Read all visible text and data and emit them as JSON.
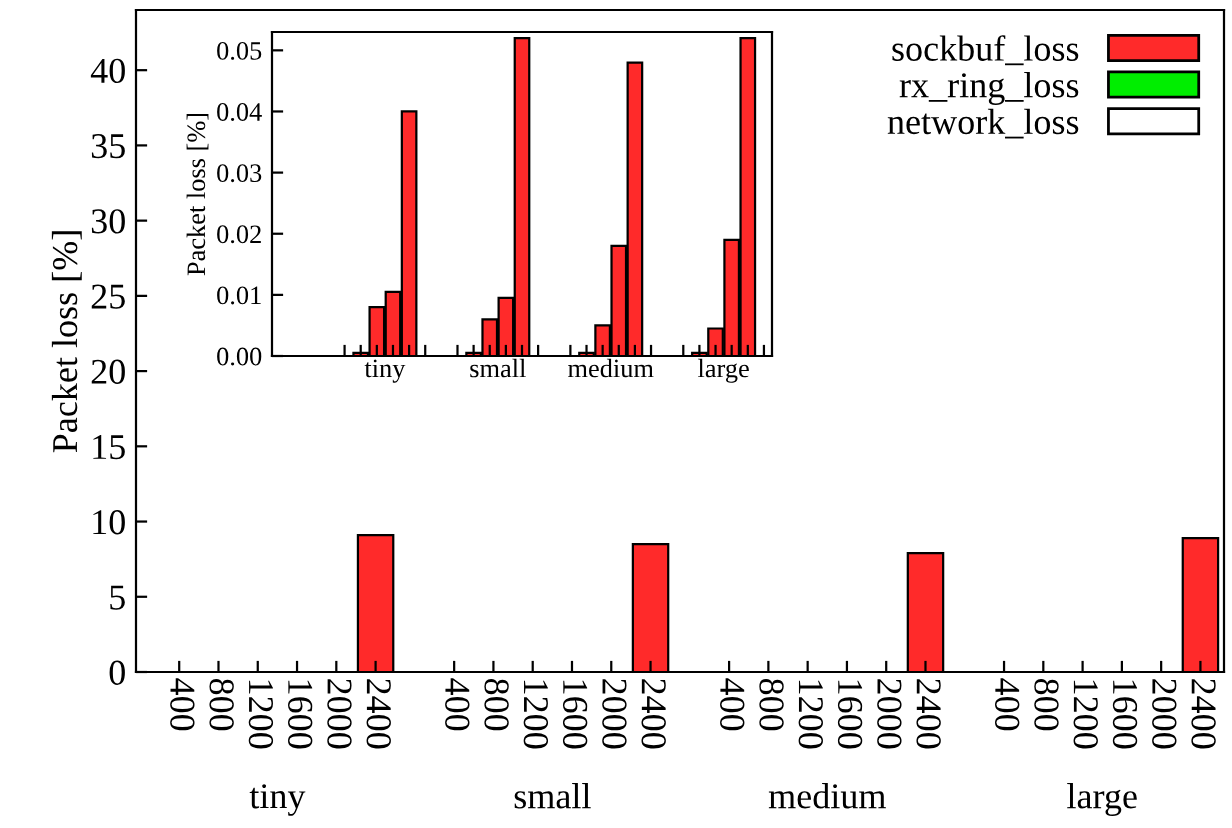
{
  "chart_data": [
    {
      "type": "bar",
      "ylabel": "Packet loss [%]",
      "categories": [
        "400",
        "800",
        "1200",
        "1600",
        "2000",
        "2400",
        null,
        "400",
        "800",
        "1200",
        "1600",
        "2000",
        "2400",
        null,
        "400",
        "800",
        "1200",
        "1600",
        "2000",
        "2400",
        null,
        "400",
        "800",
        "1200",
        "1600",
        "2000",
        "2400"
      ],
      "series": [
        {
          "name": "sockbuf_loss",
          "color": "#ff2a2a",
          "values": [
            0,
            0,
            0,
            0,
            0,
            9.1,
            null,
            0,
            0,
            0,
            0,
            0,
            8.5,
            null,
            0,
            0,
            0,
            0,
            0,
            7.9,
            null,
            0,
            0,
            0,
            0,
            0,
            8.9
          ]
        },
        {
          "name": "rx_ring_loss",
          "color": "#00ee00",
          "values": [
            0,
            0,
            0,
            0,
            0,
            0,
            null,
            0,
            0,
            0,
            0,
            0,
            0,
            null,
            0,
            0,
            0,
            0,
            0,
            0,
            null,
            0,
            0,
            0,
            0,
            0,
            0
          ]
        },
        {
          "name": "network_loss",
          "color": "#ffffff",
          "values": [
            0,
            0,
            0,
            0,
            0,
            0,
            null,
            0,
            0,
            0,
            0,
            0,
            0,
            null,
            0,
            0,
            0,
            0,
            0,
            0,
            null,
            0,
            0,
            0,
            0,
            0,
            0
          ]
        }
      ],
      "ylim": [
        0,
        44
      ],
      "yticks": [
        0,
        5,
        10,
        15,
        20,
        25,
        30,
        35,
        40
      ],
      "legend": "top right",
      "grid": false,
      "annotations": [
        "tiny",
        "small",
        "medium",
        "large"
      ]
    },
    {
      "type": "bar",
      "ylabel": "Packet loss [%]",
      "categories": [
        null,
        null,
        null,
        null,
        null,
        null,
        null,
        null,
        null,
        null,
        null,
        null,
        null,
        null,
        null,
        null,
        null,
        null,
        null,
        null,
        null,
        null,
        null,
        null,
        null,
        null,
        null,
        null,
        null,
        null,
        null
      ],
      "series": [
        {
          "color": "#ff2a2a",
          "values": [
            null,
            null,
            null,
            null,
            0,
            0.0005,
            0.008,
            0.0105,
            0.04,
            null,
            null,
            0,
            0.0005,
            0.006,
            0.0095,
            0.052,
            null,
            null,
            0,
            0.0005,
            0.005,
            0.018,
            0.048,
            null,
            null,
            0,
            0.0005,
            0.0045,
            0.019,
            0.052,
            null
          ]
        },
        {
          "color": "#00ee00",
          "values": [
            null,
            null,
            null,
            null,
            0,
            0,
            0,
            0,
            0,
            0,
            null,
            0,
            0,
            0,
            0,
            0,
            0,
            null,
            0,
            0,
            0,
            0,
            0,
            0,
            null,
            0,
            0,
            0,
            0,
            0,
            0
          ]
        },
        {
          "color": "#ffffff",
          "values": [
            null,
            null,
            null,
            null,
            0,
            0,
            0,
            0,
            0,
            0,
            null,
            0,
            0,
            0,
            0,
            0,
            0,
            null,
            0,
            0,
            0,
            0,
            0,
            0,
            null,
            0,
            0,
            0,
            0,
            0,
            0
          ]
        }
      ],
      "ylim": [
        0,
        0.053
      ],
      "yticks": [
        {
          "value": 0,
          "label": "0.00"
        },
        {
          "value": 0.01,
          "label": "0.01"
        },
        {
          "value": 0.02,
          "label": "0.02"
        },
        {
          "value": 0.03,
          "label": "0.03"
        },
        {
          "value": 0.04,
          "label": "0.04"
        },
        {
          "value": 0.05,
          "label": "0.05"
        }
      ],
      "grid": false,
      "annotations": [
        "tiny",
        "small",
        "medium",
        "large"
      ]
    }
  ]
}
